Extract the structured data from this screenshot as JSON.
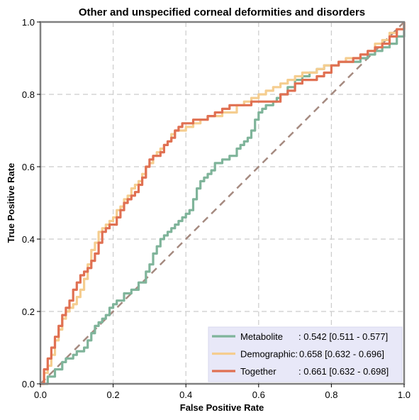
{
  "chart_data": {
    "type": "line",
    "title": "Other and unspecified corneal deformities and disorders",
    "xlabel": "False Positive Rate",
    "ylabel": "True Positive Rate",
    "xlim": [
      0,
      1
    ],
    "ylim": [
      0,
      1
    ],
    "xticks": [
      "0.0",
      "0.2",
      "0.4",
      "0.6",
      "0.8",
      "1.0"
    ],
    "yticks": [
      "0.0",
      "0.2",
      "0.4",
      "0.6",
      "0.8",
      "1.0"
    ],
    "grid": true,
    "legend_position": "bottom-right",
    "legend_background": "#e8e8f8",
    "diagonal": {
      "color": "#a58a80",
      "style": "dashed",
      "x": [
        0,
        1
      ],
      "y": [
        0,
        1
      ]
    },
    "series": [
      {
        "name": "Metabolite",
        "legend_name": "Metabolite",
        "legend_value": ": 0.542 [0.511 - 0.577]",
        "color": "#7fb49a",
        "x": [
          0.0,
          0.02,
          0.04,
          0.05,
          0.06,
          0.07,
          0.08,
          0.09,
          0.1,
          0.12,
          0.13,
          0.14,
          0.15,
          0.16,
          0.17,
          0.18,
          0.19,
          0.2,
          0.21,
          0.23,
          0.25,
          0.27,
          0.29,
          0.3,
          0.31,
          0.32,
          0.33,
          0.34,
          0.35,
          0.36,
          0.37,
          0.38,
          0.39,
          0.4,
          0.41,
          0.42,
          0.43,
          0.44,
          0.45,
          0.46,
          0.47,
          0.48,
          0.49,
          0.5,
          0.52,
          0.54,
          0.55,
          0.56,
          0.57,
          0.58,
          0.59,
          0.6,
          0.61,
          0.62,
          0.63,
          0.64,
          0.65,
          0.66,
          0.67,
          0.68,
          0.7,
          0.72,
          0.74,
          0.75,
          0.76,
          0.78,
          0.8,
          0.82,
          0.84,
          0.86,
          0.88,
          0.9,
          0.92,
          0.94,
          0.96,
          0.98,
          1.0
        ],
        "y": [
          0.0,
          0.02,
          0.04,
          0.04,
          0.06,
          0.07,
          0.07,
          0.08,
          0.09,
          0.1,
          0.12,
          0.14,
          0.16,
          0.17,
          0.18,
          0.19,
          0.21,
          0.22,
          0.23,
          0.25,
          0.26,
          0.28,
          0.31,
          0.33,
          0.36,
          0.38,
          0.4,
          0.41,
          0.42,
          0.43,
          0.44,
          0.45,
          0.46,
          0.47,
          0.48,
          0.51,
          0.54,
          0.56,
          0.57,
          0.58,
          0.59,
          0.61,
          0.61,
          0.62,
          0.63,
          0.65,
          0.66,
          0.67,
          0.68,
          0.7,
          0.73,
          0.75,
          0.76,
          0.77,
          0.77,
          0.78,
          0.79,
          0.8,
          0.8,
          0.82,
          0.84,
          0.85,
          0.86,
          0.86,
          0.87,
          0.88,
          0.88,
          0.89,
          0.89,
          0.89,
          0.9,
          0.91,
          0.92,
          0.93,
          0.94,
          0.96,
          1.0
        ]
      },
      {
        "name": "Demographic:",
        "legend_name": "Demographic:",
        "legend_value": " 0.658 [0.632 - 0.696]",
        "color": "#f5cd8f",
        "x": [
          0.0,
          0.01,
          0.02,
          0.03,
          0.04,
          0.05,
          0.06,
          0.07,
          0.08,
          0.09,
          0.1,
          0.11,
          0.12,
          0.13,
          0.14,
          0.15,
          0.16,
          0.17,
          0.18,
          0.19,
          0.2,
          0.21,
          0.22,
          0.23,
          0.24,
          0.25,
          0.26,
          0.27,
          0.28,
          0.29,
          0.3,
          0.31,
          0.32,
          0.33,
          0.34,
          0.35,
          0.36,
          0.37,
          0.38,
          0.39,
          0.4,
          0.42,
          0.44,
          0.46,
          0.48,
          0.5,
          0.52,
          0.54,
          0.56,
          0.58,
          0.6,
          0.62,
          0.64,
          0.66,
          0.68,
          0.7,
          0.72,
          0.74,
          0.76,
          0.78,
          0.8,
          0.82,
          0.84,
          0.86,
          0.88,
          0.9,
          0.92,
          0.94,
          0.96,
          0.98,
          1.0
        ],
        "y": [
          0.0,
          0.03,
          0.05,
          0.08,
          0.12,
          0.15,
          0.18,
          0.2,
          0.21,
          0.22,
          0.24,
          0.26,
          0.29,
          0.33,
          0.37,
          0.39,
          0.42,
          0.43,
          0.44,
          0.45,
          0.46,
          0.48,
          0.49,
          0.51,
          0.52,
          0.54,
          0.55,
          0.56,
          0.58,
          0.6,
          0.61,
          0.63,
          0.64,
          0.65,
          0.66,
          0.67,
          0.69,
          0.7,
          0.7,
          0.7,
          0.71,
          0.72,
          0.73,
          0.74,
          0.74,
          0.75,
          0.75,
          0.77,
          0.78,
          0.79,
          0.8,
          0.81,
          0.82,
          0.83,
          0.84,
          0.85,
          0.86,
          0.86,
          0.87,
          0.88,
          0.88,
          0.89,
          0.9,
          0.9,
          0.91,
          0.92,
          0.94,
          0.95,
          0.97,
          0.98,
          1.0
        ]
      },
      {
        "name": "Together",
        "legend_name": "Together",
        "legend_value": ": 0.661 [0.632 - 0.698]",
        "color": "#e07052",
        "x": [
          0.0,
          0.01,
          0.02,
          0.03,
          0.04,
          0.05,
          0.06,
          0.07,
          0.08,
          0.09,
          0.1,
          0.11,
          0.12,
          0.13,
          0.14,
          0.15,
          0.16,
          0.17,
          0.18,
          0.19,
          0.2,
          0.21,
          0.22,
          0.23,
          0.24,
          0.25,
          0.26,
          0.27,
          0.28,
          0.29,
          0.3,
          0.31,
          0.32,
          0.33,
          0.34,
          0.35,
          0.36,
          0.37,
          0.38,
          0.39,
          0.4,
          0.42,
          0.44,
          0.46,
          0.48,
          0.5,
          0.52,
          0.54,
          0.56,
          0.58,
          0.6,
          0.62,
          0.64,
          0.66,
          0.68,
          0.7,
          0.72,
          0.74,
          0.76,
          0.78,
          0.8,
          0.82,
          0.84,
          0.86,
          0.88,
          0.9,
          0.92,
          0.94,
          0.96,
          0.98,
          1.0
        ],
        "y": [
          0.0,
          0.04,
          0.07,
          0.1,
          0.13,
          0.16,
          0.19,
          0.21,
          0.23,
          0.26,
          0.28,
          0.3,
          0.31,
          0.32,
          0.34,
          0.36,
          0.39,
          0.42,
          0.43,
          0.44,
          0.44,
          0.46,
          0.48,
          0.5,
          0.51,
          0.52,
          0.53,
          0.55,
          0.57,
          0.6,
          0.62,
          0.63,
          0.63,
          0.64,
          0.66,
          0.67,
          0.68,
          0.7,
          0.71,
          0.72,
          0.72,
          0.73,
          0.73,
          0.74,
          0.75,
          0.76,
          0.77,
          0.77,
          0.77,
          0.78,
          0.78,
          0.78,
          0.78,
          0.8,
          0.81,
          0.83,
          0.84,
          0.84,
          0.85,
          0.86,
          0.88,
          0.89,
          0.89,
          0.9,
          0.91,
          0.92,
          0.93,
          0.94,
          0.96,
          0.98,
          1.0
        ]
      }
    ]
  }
}
